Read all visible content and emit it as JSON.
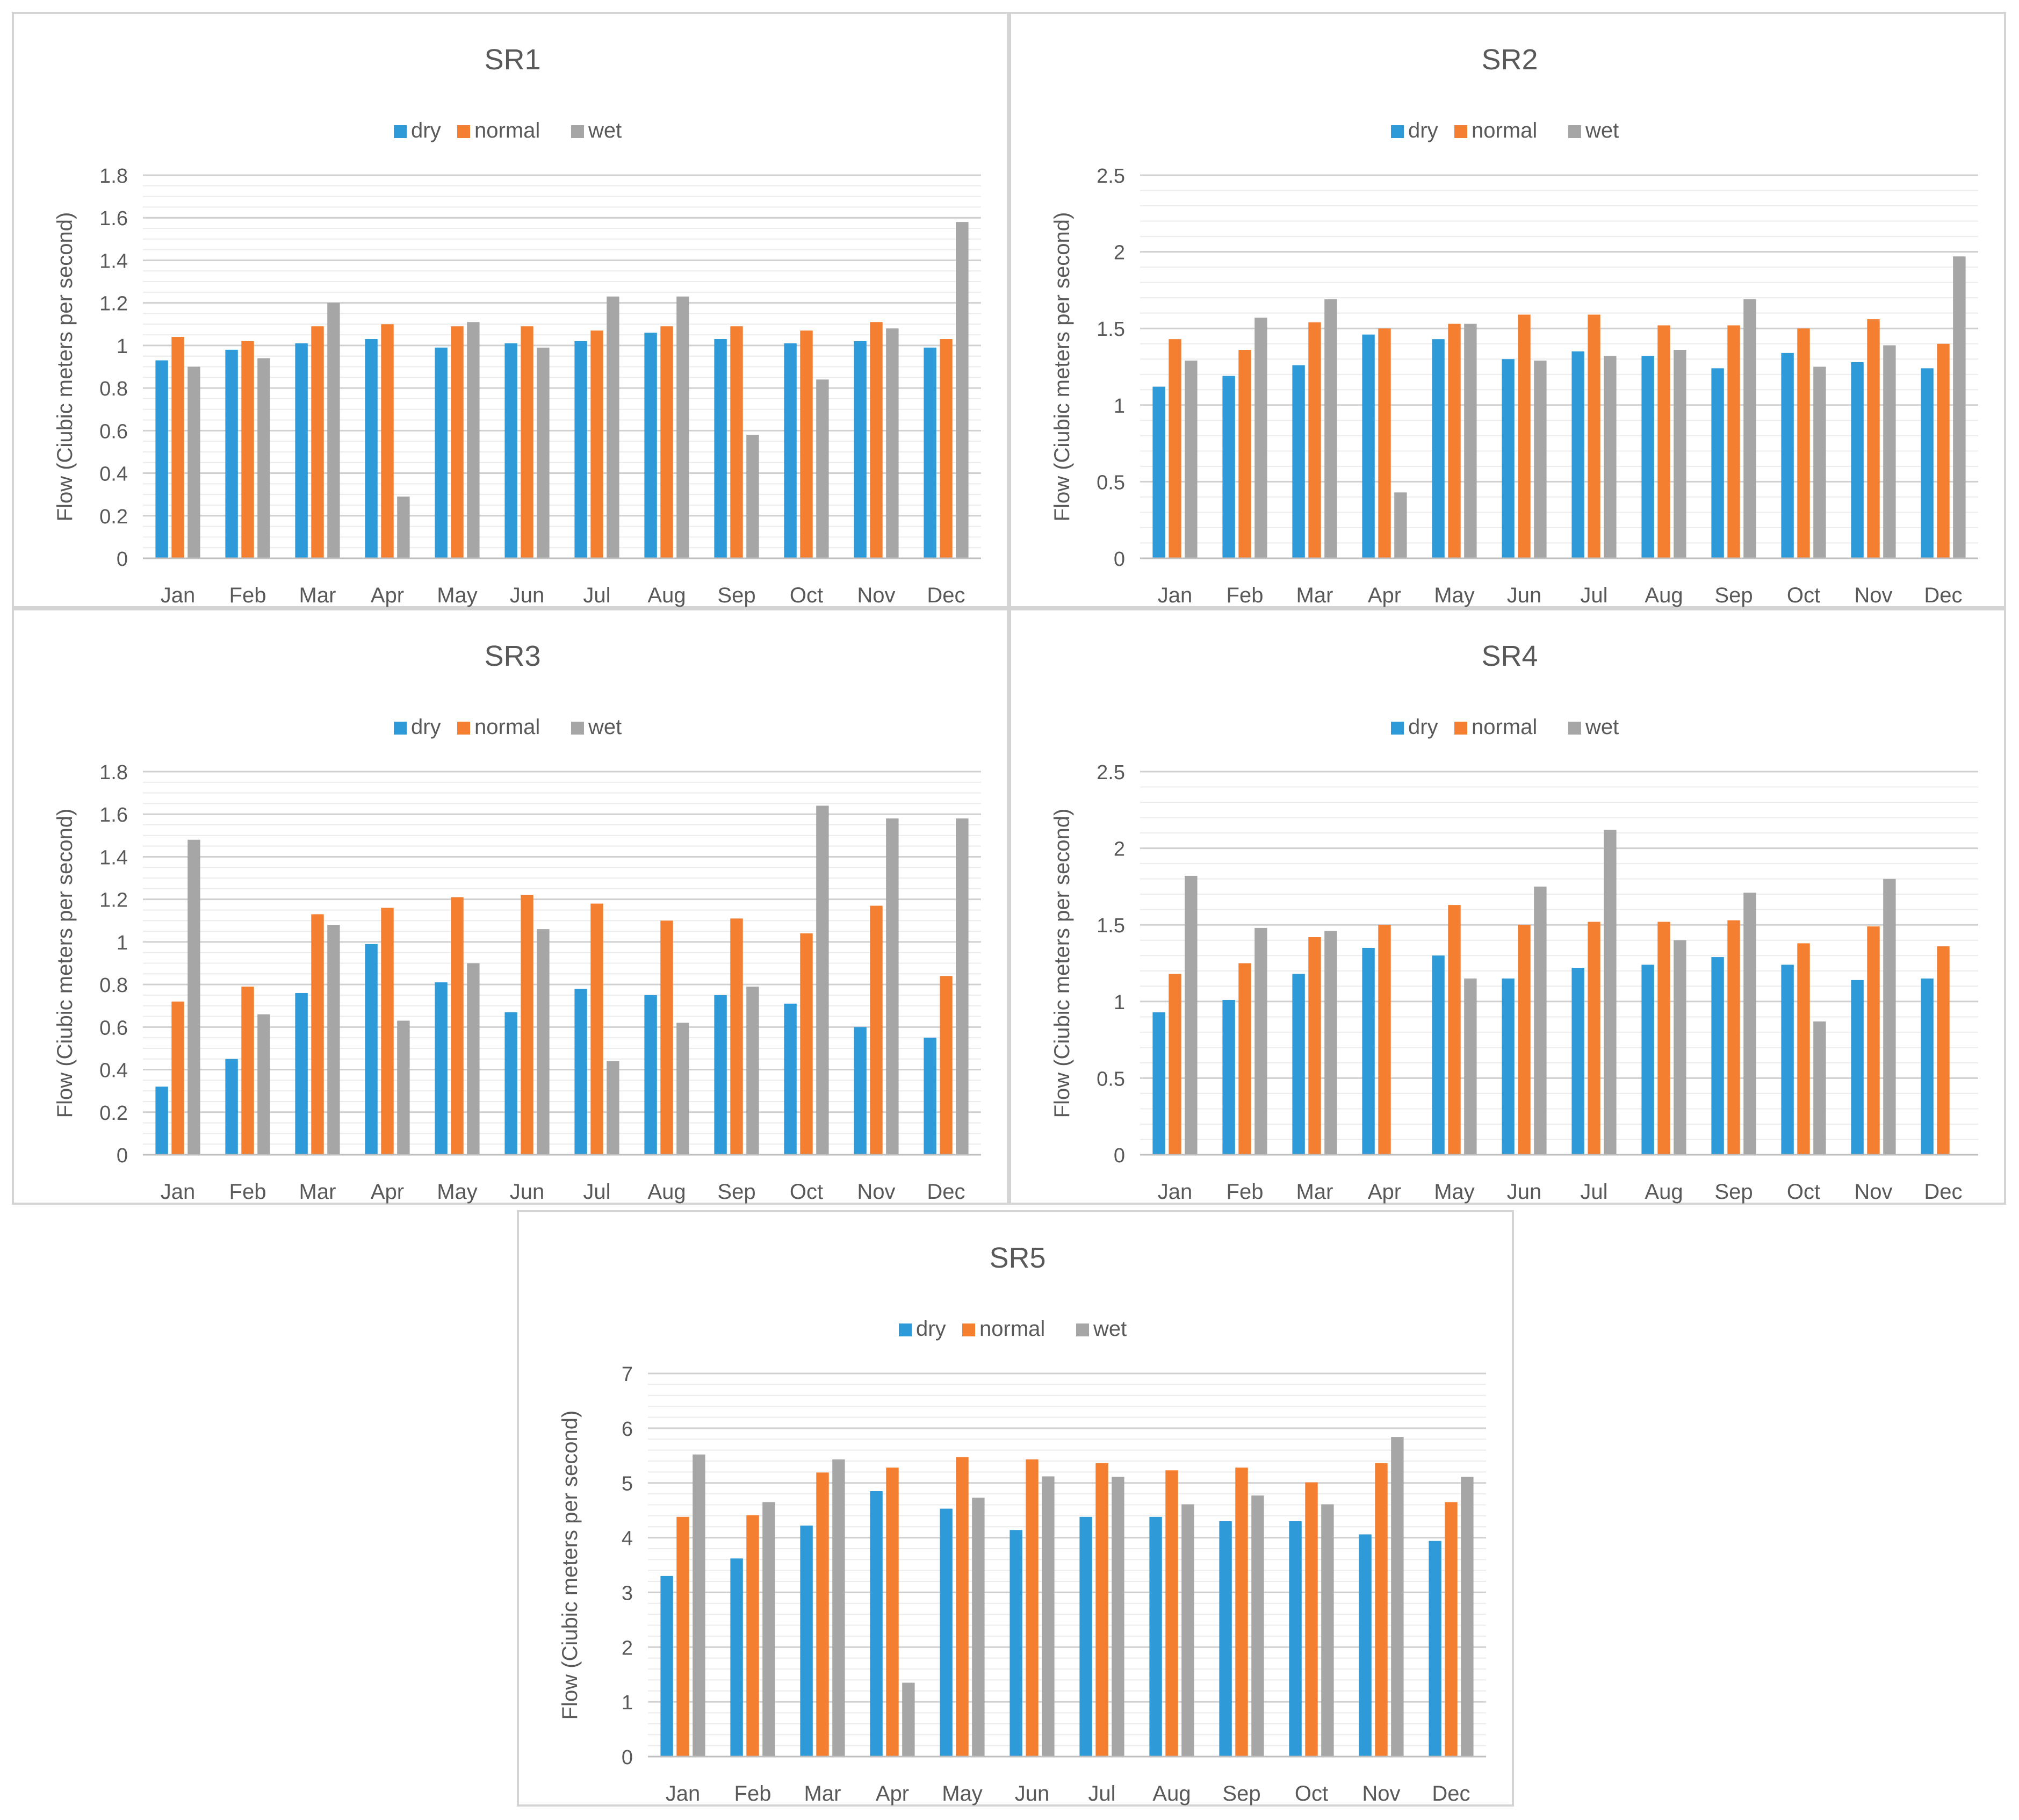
{
  "chart_data": [
    {
      "type": "bar",
      "title": "SR1",
      "xlabel": "",
      "ylabel": "Flow (Ciubic meters per second)",
      "categories": [
        "Jan",
        "Feb",
        "Mar",
        "Apr",
        "May",
        "Jun",
        "Jul",
        "Aug",
        "Sep",
        "Oct",
        "Nov",
        "Dec"
      ],
      "ylim": [
        0,
        1.8
      ],
      "yticks": [
        0,
        0.2,
        0.4,
        0.6,
        0.8,
        1,
        1.2,
        1.4,
        1.6,
        1.8
      ],
      "ytick_labels": [
        "0",
        "0.2",
        "0.4",
        "0.6",
        "0.8",
        "1",
        "1.2",
        "1.4",
        "1.6",
        "1.8"
      ],
      "minor_step": 0.05,
      "legend_position": "top-center",
      "series": [
        {
          "name": "dry",
          "values": [
            0.93,
            0.98,
            1.01,
            1.03,
            0.99,
            1.01,
            1.02,
            1.06,
            1.03,
            1.01,
            1.02,
            0.99
          ]
        },
        {
          "name": "normal",
          "values": [
            1.04,
            1.02,
            1.09,
            1.1,
            1.09,
            1.09,
            1.07,
            1.09,
            1.09,
            1.07,
            1.11,
            1.03
          ]
        },
        {
          "name": "wet",
          "values": [
            0.9,
            0.94,
            1.2,
            0.29,
            1.11,
            0.99,
            1.23,
            1.23,
            0.58,
            0.84,
            1.08,
            1.58
          ]
        }
      ]
    },
    {
      "type": "bar",
      "title": "SR2",
      "xlabel": "",
      "ylabel": "Flow (Ciubic meters per second)",
      "categories": [
        "Jan",
        "Feb",
        "Mar",
        "Apr",
        "May",
        "Jun",
        "Jul",
        "Aug",
        "Sep",
        "Oct",
        "Nov",
        "Dec"
      ],
      "ylim": [
        0,
        2.5
      ],
      "yticks": [
        0,
        0.5,
        1,
        1.5,
        2,
        2.5
      ],
      "ytick_labels": [
        "0",
        "0.5",
        "1",
        "1.5",
        "2",
        "2.5"
      ],
      "minor_step": 0.1,
      "legend_position": "top-center",
      "series": [
        {
          "name": "dry",
          "values": [
            1.12,
            1.19,
            1.26,
            1.46,
            1.43,
            1.3,
            1.35,
            1.32,
            1.24,
            1.34,
            1.28,
            1.24
          ]
        },
        {
          "name": "normal",
          "values": [
            1.43,
            1.36,
            1.54,
            1.5,
            1.53,
            1.59,
            1.59,
            1.52,
            1.52,
            1.5,
            1.56,
            1.4
          ]
        },
        {
          "name": "wet",
          "values": [
            1.29,
            1.57,
            1.69,
            0.43,
            1.53,
            1.29,
            1.32,
            1.36,
            1.69,
            1.25,
            1.39,
            1.97
          ]
        }
      ]
    },
    {
      "type": "bar",
      "title": "SR3",
      "xlabel": "",
      "ylabel": "Flow (Ciubic meters per second)",
      "categories": [
        "Jan",
        "Feb",
        "Mar",
        "Apr",
        "May",
        "Jun",
        "Jul",
        "Aug",
        "Sep",
        "Oct",
        "Nov",
        "Dec"
      ],
      "ylim": [
        0,
        1.8
      ],
      "yticks": [
        0,
        0.2,
        0.4,
        0.6,
        0.8,
        1,
        1.2,
        1.4,
        1.6,
        1.8
      ],
      "ytick_labels": [
        "0",
        "0.2",
        "0.4",
        "0.6",
        "0.8",
        "1",
        "1.2",
        "1.4",
        "1.6",
        "1.8"
      ],
      "minor_step": 0.05,
      "legend_position": "top-center",
      "series": [
        {
          "name": "dry",
          "values": [
            0.32,
            0.45,
            0.76,
            0.99,
            0.81,
            0.67,
            0.78,
            0.75,
            0.75,
            0.71,
            0.6,
            0.55
          ]
        },
        {
          "name": "normal",
          "values": [
            0.72,
            0.79,
            1.13,
            1.16,
            1.21,
            1.22,
            1.18,
            1.1,
            1.11,
            1.04,
            1.17,
            0.84
          ]
        },
        {
          "name": "wet",
          "values": [
            1.48,
            0.66,
            1.08,
            0.63,
            0.9,
            1.06,
            0.44,
            0.62,
            0.79,
            1.64,
            1.58,
            1.58
          ]
        }
      ]
    },
    {
      "type": "bar",
      "title": "SR4",
      "xlabel": "",
      "ylabel": "Flow (Ciubic meters per second)",
      "categories": [
        "Jan",
        "Feb",
        "Mar",
        "Apr",
        "May",
        "Jun",
        "Jul",
        "Aug",
        "Sep",
        "Oct",
        "Nov",
        "Dec"
      ],
      "ylim": [
        0,
        2.5
      ],
      "yticks": [
        0,
        0.5,
        1,
        1.5,
        2,
        2.5
      ],
      "ytick_labels": [
        "0",
        "0.5",
        "1",
        "1.5",
        "2",
        "2.5"
      ],
      "minor_step": 0.1,
      "legend_position": "top-center",
      "series": [
        {
          "name": "dry",
          "values": [
            0.93,
            1.01,
            1.18,
            1.35,
            1.3,
            1.15,
            1.22,
            1.24,
            1.29,
            1.24,
            1.14,
            1.15
          ]
        },
        {
          "name": "normal",
          "values": [
            1.18,
            1.25,
            1.42,
            1.5,
            1.63,
            1.5,
            1.52,
            1.52,
            1.53,
            1.38,
            1.49,
            1.36
          ]
        },
        {
          "name": "wet",
          "values": [
            1.82,
            1.48,
            1.46,
            0,
            1.15,
            1.75,
            2.12,
            1.4,
            1.71,
            0.87,
            1.8,
            0
          ]
        }
      ]
    },
    {
      "type": "bar",
      "title": "SR5",
      "xlabel": "",
      "ylabel": "Flow (Ciubic meters per second)",
      "categories": [
        "Jan",
        "Feb",
        "Mar",
        "Apr",
        "May",
        "Jun",
        "Jul",
        "Aug",
        "Sep",
        "Oct",
        "Nov",
        "Dec"
      ],
      "ylim": [
        0,
        7
      ],
      "yticks": [
        0,
        1,
        2,
        3,
        4,
        5,
        6,
        7
      ],
      "ytick_labels": [
        "0",
        "1",
        "2",
        "3",
        "4",
        "5",
        "6",
        "7"
      ],
      "minor_step": 0.2,
      "legend_position": "top-center",
      "series": [
        {
          "name": "dry",
          "values": [
            3.3,
            3.62,
            4.22,
            4.85,
            4.53,
            4.14,
            4.38,
            4.38,
            4.3,
            4.3,
            4.06,
            3.94
          ]
        },
        {
          "name": "normal",
          "values": [
            4.38,
            4.41,
            5.19,
            5.28,
            5.47,
            5.43,
            5.36,
            5.23,
            5.28,
            5.01,
            5.36,
            4.65
          ]
        },
        {
          "name": "wet",
          "values": [
            5.52,
            4.65,
            5.43,
            1.35,
            4.73,
            5.12,
            5.11,
            4.61,
            4.77,
            4.61,
            5.84,
            5.11
          ]
        }
      ]
    }
  ],
  "colors": {
    "dry": "#2e9ad8",
    "normal": "#f57f30",
    "wet": "#a6a6a6"
  }
}
